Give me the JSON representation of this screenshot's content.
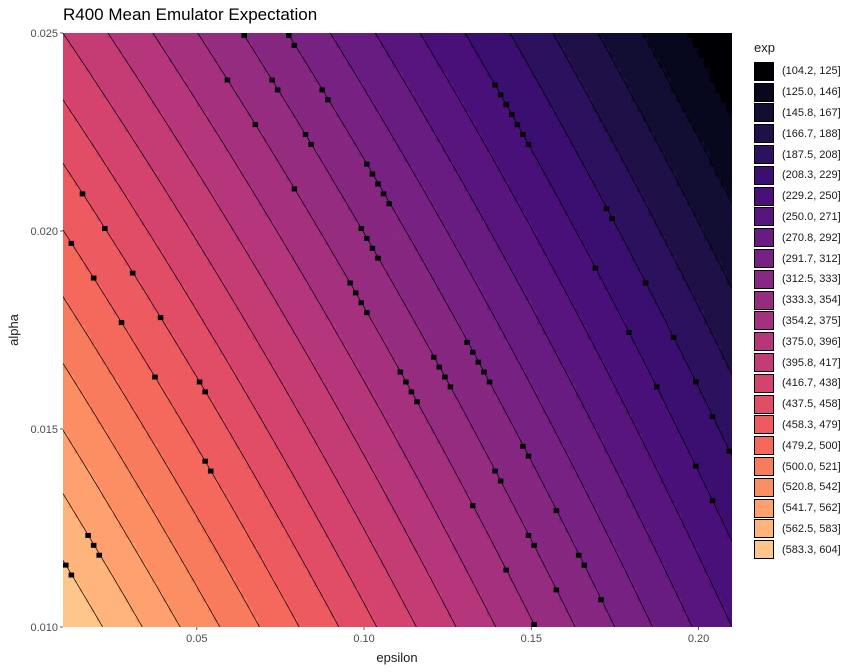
{
  "chart_data": {
    "type": "heatmap",
    "title": "R400 Mean Emulator Expectation",
    "xlabel": "epsilon",
    "ylabel": "alpha",
    "xlim": [
      0.01,
      0.21
    ],
    "ylim": [
      0.01,
      0.025
    ],
    "x_ticks": [
      0.05,
      0.1,
      0.15,
      0.2
    ],
    "x_tick_labels": [
      "0.05",
      "0.10",
      "0.15",
      "0.20"
    ],
    "y_ticks": [
      0.01,
      0.015,
      0.02,
      0.025
    ],
    "y_tick_labels": [
      "0.010",
      "0.015",
      "0.020",
      "0.025"
    ],
    "legend_title": "exp",
    "legend_position": "right",
    "levels": [
      {
        "label": "(104.2, 125]",
        "min": 104.2,
        "max": 125,
        "color": "#000004"
      },
      {
        "label": "(125.0, 146]",
        "min": 125.0,
        "max": 146,
        "color": "#07071d"
      },
      {
        "label": "(145.8, 167]",
        "min": 145.8,
        "max": 167,
        "color": "#120d32"
      },
      {
        "label": "(166.7, 188]",
        "min": 166.7,
        "max": 188,
        "color": "#1f1147"
      },
      {
        "label": "(187.5, 208]",
        "min": 187.5,
        "max": 208,
        "color": "#2c115f"
      },
      {
        "label": "(208.3, 229]",
        "min": 208.3,
        "max": 229,
        "color": "#3b0f70"
      },
      {
        "label": "(229.2, 250]",
        "min": 229.2,
        "max": 250,
        "color": "#4a1079"
      },
      {
        "label": "(250.0, 271]",
        "min": 250.0,
        "max": 271,
        "color": "#59157e"
      },
      {
        "label": "(270.8, 292]",
        "min": 270.8,
        "max": 292,
        "color": "#681c81"
      },
      {
        "label": "(291.7, 312]",
        "min": 291.7,
        "max": 312,
        "color": "#772282"
      },
      {
        "label": "(312.5, 333]",
        "min": 312.5,
        "max": 333,
        "color": "#862781"
      },
      {
        "label": "(333.3, 354]",
        "min": 333.3,
        "max": 354,
        "color": "#952c80"
      },
      {
        "label": "(354.2, 375]",
        "min": 354.2,
        "max": 375,
        "color": "#a5317e"
      },
      {
        "label": "(375.0, 396]",
        "min": 375.0,
        "max": 396,
        "color": "#b5367a"
      },
      {
        "label": "(395.8, 417]",
        "min": 395.8,
        "max": 417,
        "color": "#c53c74"
      },
      {
        "label": "(416.7, 438]",
        "min": 416.7,
        "max": 438,
        "color": "#d4436e"
      },
      {
        "label": "(437.5, 458]",
        "min": 437.5,
        "max": 458,
        "color": "#e24d66"
      },
      {
        "label": "(458.3, 479]",
        "min": 458.3,
        "max": 479,
        "color": "#ed5a5f"
      },
      {
        "label": "(479.2, 500]",
        "min": 479.2,
        "max": 500,
        "color": "#f5695c"
      },
      {
        "label": "(500.0, 521]",
        "min": 500.0,
        "max": 521,
        "color": "#f97b5d"
      },
      {
        "label": "(520.8, 542]",
        "min": 520.8,
        "max": 542,
        "color": "#fc8e63"
      },
      {
        "label": "(541.7, 562]",
        "min": 541.7,
        "max": 562,
        "color": "#fea16e"
      },
      {
        "label": "(562.5, 583]",
        "min": 562.5,
        "max": 583,
        "color": "#feb47b"
      },
      {
        "label": "(583.3, 604]",
        "min": 583.3,
        "max": 604,
        "color": "#fec68a"
      },
      {
        "label": "(583.3, 604]",
        "min": 583.3,
        "max": 604,
        "color": "#fcfdbf"
      }
    ],
    "surface": {
      "description_values": "expectation ≈ linear in epsilon and alpha",
      "value_at_x_min_y_min": 604,
      "value_at_x_max_y_max": 104.2,
      "value_at_x_max_y_min": 250,
      "value_at_x_min_y_max": 417
    }
  }
}
